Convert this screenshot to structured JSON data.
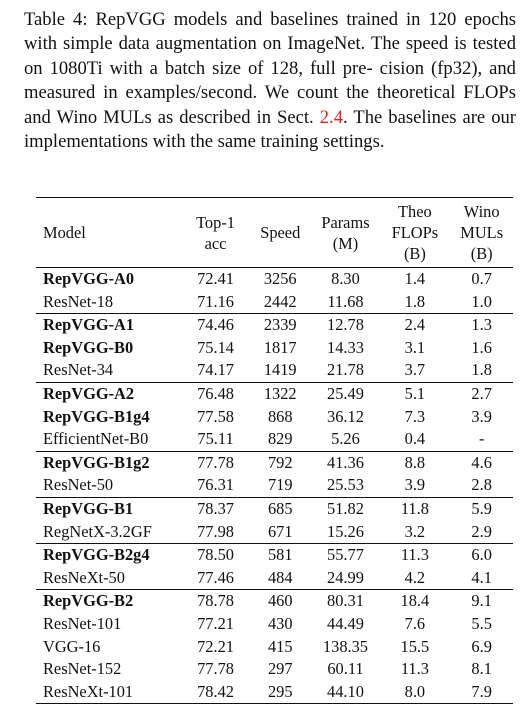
{
  "caption": {
    "lines": [
      "Table 4: RepVGG models and baselines trained in 120",
      "epochs with simple data augmentation on ImageNet. The",
      "speed is tested on 1080Ti with a batch size of 128, full pre-",
      "cision (fp32), and measured in examples/second. We count",
      "the theoretical FLOPs and Wino MULs as described in Sect."
    ],
    "ref": "2.4",
    "last_line_rest": ". The baselines are our implementations with the same",
    "final_line": "training settings."
  },
  "table": {
    "headers": {
      "model": "Model",
      "top1_a": "Top-1",
      "top1_b": "acc",
      "speed": "Speed",
      "params_a": "Params",
      "params_b": "(M)",
      "flops_a": "Theo",
      "flops_b": "FLOPs",
      "flops_c": "(B)",
      "muls_a": "Wino",
      "muls_b": "MULs",
      "muls_c": "(B)"
    },
    "groups": [
      [
        {
          "model": "RepVGG-A0",
          "bold": true,
          "top1": "72.41",
          "speed": "3256",
          "params": "8.30",
          "flops": "1.4",
          "muls": "0.7"
        },
        {
          "model": "ResNet-18",
          "bold": false,
          "top1": "71.16",
          "speed": "2442",
          "params": "11.68",
          "flops": "1.8",
          "muls": "1.0"
        }
      ],
      [
        {
          "model": "RepVGG-A1",
          "bold": true,
          "top1": "74.46",
          "speed": "2339",
          "params": "12.78",
          "flops": "2.4",
          "muls": "1.3"
        },
        {
          "model": "RepVGG-B0",
          "bold": true,
          "top1": "75.14",
          "speed": "1817",
          "params": "14.33",
          "flops": "3.1",
          "muls": "1.6"
        },
        {
          "model": "ResNet-34",
          "bold": false,
          "top1": "74.17",
          "speed": "1419",
          "params": "21.78",
          "flops": "3.7",
          "muls": "1.8"
        }
      ],
      [
        {
          "model": "RepVGG-A2",
          "bold": true,
          "top1": "76.48",
          "speed": "1322",
          "params": "25.49",
          "flops": "5.1",
          "muls": "2.7"
        },
        {
          "model": "RepVGG-B1g4",
          "bold": true,
          "top1": "77.58",
          "speed": "868",
          "params": "36.12",
          "flops": "7.3",
          "muls": "3.9"
        },
        {
          "model": "EfficientNet-B0",
          "bold": false,
          "top1": "75.11",
          "speed": "829",
          "params": "5.26",
          "flops": "0.4",
          "muls": "-"
        }
      ],
      [
        {
          "model": "RepVGG-B1g2",
          "bold": true,
          "top1": "77.78",
          "speed": "792",
          "params": "41.36",
          "flops": "8.8",
          "muls": "4.6"
        },
        {
          "model": "ResNet-50",
          "bold": false,
          "top1": "76.31",
          "speed": "719",
          "params": "25.53",
          "flops": "3.9",
          "muls": "2.8"
        }
      ],
      [
        {
          "model": "RepVGG-B1",
          "bold": true,
          "top1": "78.37",
          "speed": "685",
          "params": "51.82",
          "flops": "11.8",
          "muls": "5.9"
        },
        {
          "model": "RegNetX-3.2GF",
          "bold": false,
          "top1": "77.98",
          "speed": "671",
          "params": "15.26",
          "flops": "3.2",
          "muls": "2.9"
        }
      ],
      [
        {
          "model": "RepVGG-B2g4",
          "bold": true,
          "top1": "78.50",
          "speed": "581",
          "params": "55.77",
          "flops": "11.3",
          "muls": "6.0"
        },
        {
          "model": "ResNeXt-50",
          "bold": false,
          "top1": "77.46",
          "speed": "484",
          "params": "24.99",
          "flops": "4.2",
          "muls": "4.1"
        }
      ],
      [
        {
          "model": "RepVGG-B2",
          "bold": true,
          "top1": "78.78",
          "speed": "460",
          "params": "80.31",
          "flops": "18.4",
          "muls": "9.1"
        },
        {
          "model": "ResNet-101",
          "bold": false,
          "top1": "77.21",
          "speed": "430",
          "params": "44.49",
          "flops": "7.6",
          "muls": "5.5"
        },
        {
          "model": "VGG-16",
          "bold": false,
          "top1": "72.21",
          "speed": "415",
          "params": "138.35",
          "flops": "15.5",
          "muls": "6.9"
        },
        {
          "model": "ResNet-152",
          "bold": false,
          "top1": "77.78",
          "speed": "297",
          "params": "60.11",
          "flops": "11.3",
          "muls": "8.1"
        },
        {
          "model": "ResNeXt-101",
          "bold": false,
          "top1": "78.42",
          "speed": "295",
          "params": "44.10",
          "flops": "8.0",
          "muls": "7.9"
        }
      ]
    ]
  }
}
